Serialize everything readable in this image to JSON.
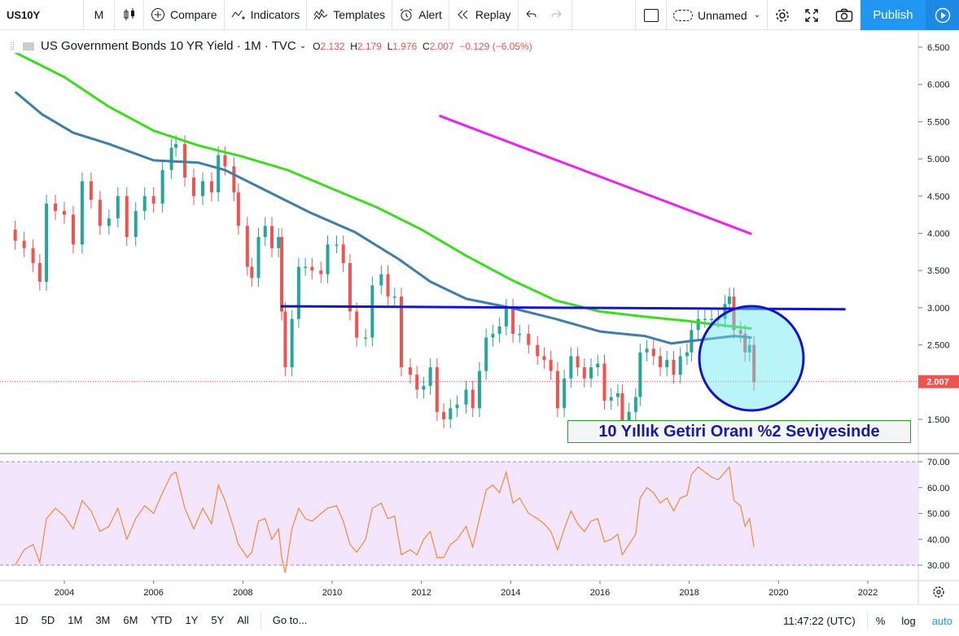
{
  "toolbar": {
    "symbol": "US10Y",
    "interval": "M",
    "compare": "Compare",
    "indicators": "Indicators",
    "templates": "Templates",
    "alert": "Alert",
    "replay": "Replay",
    "layout_name": "Unnamed",
    "publish": "Publish"
  },
  "legend": {
    "title": "US Government Bonds 10 YR Yield · 1M · TVC",
    "open_label": "O",
    "open": "2.132",
    "high_label": "H",
    "high": "2.179",
    "low_label": "L",
    "low": "1.976",
    "close_label": "C",
    "close": "2.007",
    "change": "−0.129 (−6.05%)"
  },
  "price_tag": "2.007",
  "annotation": "10 Yıllık Getiri Oranı %2 Seviyesinde",
  "bottombar": {
    "ranges": [
      "1D",
      "5D",
      "1M",
      "3M",
      "6M",
      "YTD",
      "1Y",
      "5Y",
      "All"
    ],
    "goto": "Go to...",
    "time": "11:47:22 (UTC)",
    "percent": "%",
    "log": "log",
    "auto": "auto"
  },
  "colors": {
    "up": "#26a69a",
    "down": "#ef5350",
    "ma_green": "#3ddc20",
    "ma_blue": "#3f7ea6",
    "magenta": "#ee22ee",
    "hline": "#1515c8",
    "rsi_line": "#f08a3c",
    "rsi_band": "#f3e5fb",
    "accent": "#2196f3"
  },
  "chart_data": [
    {
      "type": "candlestick",
      "title": "US Government Bonds 10 YR Yield",
      "interval": "1M",
      "x_ticks": [
        "2004",
        "2006",
        "2008",
        "2010",
        "2012",
        "2014",
        "2016",
        "2018",
        "2020",
        "2022"
      ],
      "y_ticks": [
        "1.500",
        "2.000",
        "2.500",
        "3.000",
        "3.500",
        "4.000",
        "4.500",
        "5.000",
        "5.500",
        "6.000",
        "6.500"
      ],
      "ylim": [
        1.1,
        6.6
      ],
      "xlim": [
        2002.9,
        2023.4
      ],
      "close_series": [
        [
          2002.9,
          3.9
        ],
        [
          2003.1,
          3.8
        ],
        [
          2003.3,
          3.6
        ],
        [
          2003.45,
          3.35
        ],
        [
          2003.6,
          4.4
        ],
        [
          2003.8,
          4.3
        ],
        [
          2004.0,
          4.25
        ],
        [
          2004.2,
          3.85
        ],
        [
          2004.4,
          4.7
        ],
        [
          2004.6,
          4.45
        ],
        [
          2004.8,
          4.1
        ],
        [
          2005.0,
          4.2
        ],
        [
          2005.2,
          4.5
        ],
        [
          2005.4,
          3.95
        ],
        [
          2005.6,
          4.3
        ],
        [
          2005.8,
          4.5
        ],
        [
          2006.0,
          4.4
        ],
        [
          2006.2,
          4.85
        ],
        [
          2006.4,
          5.15
        ],
        [
          2006.5,
          5.2
        ],
        [
          2006.7,
          4.75
        ],
        [
          2006.9,
          4.5
        ],
        [
          2007.1,
          4.7
        ],
        [
          2007.3,
          4.55
        ],
        [
          2007.45,
          5.05
        ],
        [
          2007.6,
          4.9
        ],
        [
          2007.8,
          4.55
        ],
        [
          2007.9,
          4.1
        ],
        [
          2008.1,
          3.55
        ],
        [
          2008.2,
          3.4
        ],
        [
          2008.35,
          3.95
        ],
        [
          2008.5,
          4.1
        ],
        [
          2008.65,
          3.8
        ],
        [
          2008.8,
          3.95
        ],
        [
          2008.87,
          2.95
        ],
        [
          2008.95,
          2.2
        ],
        [
          2009.1,
          2.85
        ],
        [
          2009.25,
          3.55
        ],
        [
          2009.4,
          3.55
        ],
        [
          2009.55,
          3.5
        ],
        [
          2009.75,
          3.45
        ],
        [
          2009.9,
          3.85
        ],
        [
          2010.1,
          3.85
        ],
        [
          2010.25,
          3.6
        ],
        [
          2010.4,
          2.95
        ],
        [
          2010.55,
          2.6
        ],
        [
          2010.75,
          2.6
        ],
        [
          2010.9,
          3.3
        ],
        [
          2011.1,
          3.45
        ],
        [
          2011.25,
          3.15
        ],
        [
          2011.4,
          3.15
        ],
        [
          2011.55,
          2.2
        ],
        [
          2011.75,
          2.1
        ],
        [
          2011.9,
          1.9
        ],
        [
          2012.05,
          1.95
        ],
        [
          2012.2,
          2.2
        ],
        [
          2012.35,
          1.6
        ],
        [
          2012.5,
          1.5
        ],
        [
          2012.65,
          1.65
        ],
        [
          2012.8,
          1.7
        ],
        [
          2013.0,
          1.9
        ],
        [
          2013.15,
          1.65
        ],
        [
          2013.3,
          2.15
        ],
        [
          2013.45,
          2.6
        ],
        [
          2013.6,
          2.65
        ],
        [
          2013.75,
          2.75
        ],
        [
          2013.9,
          3.0
        ],
        [
          2014.05,
          2.65
        ],
        [
          2014.2,
          2.65
        ],
        [
          2014.4,
          2.5
        ],
        [
          2014.6,
          2.35
        ],
        [
          2014.75,
          2.3
        ],
        [
          2014.9,
          2.15
        ],
        [
          2015.05,
          1.65
        ],
        [
          2015.2,
          2.05
        ],
        [
          2015.35,
          2.35
        ],
        [
          2015.5,
          2.2
        ],
        [
          2015.65,
          2.05
        ],
        [
          2015.8,
          2.2
        ],
        [
          2015.95,
          2.25
        ],
        [
          2016.1,
          1.75
        ],
        [
          2016.25,
          1.8
        ],
        [
          2016.4,
          1.85
        ],
        [
          2016.5,
          1.45
        ],
        [
          2016.65,
          1.6
        ],
        [
          2016.8,
          1.8
        ],
        [
          2016.9,
          2.4
        ],
        [
          2017.05,
          2.45
        ],
        [
          2017.2,
          2.35
        ],
        [
          2017.35,
          2.2
        ],
        [
          2017.5,
          2.3
        ],
        [
          2017.65,
          2.1
        ],
        [
          2017.8,
          2.35
        ],
        [
          2017.95,
          2.4
        ],
        [
          2018.05,
          2.7
        ],
        [
          2018.2,
          2.85
        ],
        [
          2018.35,
          2.85
        ],
        [
          2018.5,
          2.85
        ],
        [
          2018.65,
          2.85
        ],
        [
          2018.8,
          3.05
        ],
        [
          2018.9,
          3.15
        ],
        [
          2019.0,
          2.7
        ],
        [
          2019.15,
          2.65
        ],
        [
          2019.25,
          2.4
        ],
        [
          2019.35,
          2.5
        ],
        [
          2019.45,
          2.0
        ]
      ],
      "moving_averages": [
        {
          "color": "green",
          "points": [
            [
              2002.9,
              6.43
            ],
            [
              2004.0,
              6.1
            ],
            [
              2005.0,
              5.7
            ],
            [
              2006.0,
              5.38
            ],
            [
              2007.0,
              5.18
            ],
            [
              2008.0,
              5.03
            ],
            [
              2009.0,
              4.85
            ],
            [
              2010.0,
              4.6
            ],
            [
              2011.0,
              4.35
            ],
            [
              2012.0,
              4.05
            ],
            [
              2013.0,
              3.7
            ],
            [
              2014.0,
              3.38
            ],
            [
              2015.0,
              3.1
            ],
            [
              2016.0,
              2.95
            ],
            [
              2017.0,
              2.88
            ],
            [
              2018.0,
              2.82
            ],
            [
              2018.5,
              2.78
            ],
            [
              2019.4,
              2.72
            ]
          ]
        },
        {
          "color": "blue",
          "points": [
            [
              2002.9,
              5.9
            ],
            [
              2003.5,
              5.6
            ],
            [
              2004.2,
              5.35
            ],
            [
              2005.0,
              5.2
            ],
            [
              2006.0,
              4.98
            ],
            [
              2007.0,
              4.95
            ],
            [
              2007.6,
              4.85
            ],
            [
              2008.5,
              4.58
            ],
            [
              2009.5,
              4.28
            ],
            [
              2010.5,
              4.02
            ],
            [
              2011.5,
              3.65
            ],
            [
              2012.2,
              3.35
            ],
            [
              2013.0,
              3.12
            ],
            [
              2014.0,
              3.0
            ],
            [
              2015.0,
              2.85
            ],
            [
              2016.0,
              2.68
            ],
            [
              2017.0,
              2.62
            ],
            [
              2017.6,
              2.52
            ],
            [
              2018.0,
              2.55
            ],
            [
              2019.0,
              2.62
            ],
            [
              2019.4,
              2.6
            ]
          ]
        }
      ],
      "trendlines": [
        {
          "color": "magenta",
          "points": [
            [
              2012.4,
              5.58
            ],
            [
              2019.4,
              3.99
            ]
          ]
        },
        {
          "color": "blue-horizontal",
          "points": [
            [
              2008.85,
              3.02
            ],
            [
              2021.5,
              2.98
            ]
          ]
        }
      ],
      "last_price": 2.007,
      "annotation_text": "10 Yıllık Getiri Oranı %2 Seviyesinde"
    },
    {
      "type": "line",
      "y_ticks": [
        "30.00",
        "40.00",
        "50.00",
        "60.00",
        "70.00"
      ],
      "ylim": [
        23,
        72
      ],
      "band": [
        30,
        70
      ],
      "values": [
        [
          2002.9,
          30
        ],
        [
          2003.1,
          36
        ],
        [
          2003.3,
          38
        ],
        [
          2003.45,
          31
        ],
        [
          2003.6,
          48
        ],
        [
          2003.8,
          52
        ],
        [
          2004.0,
          49
        ],
        [
          2004.2,
          44
        ],
        [
          2004.4,
          55
        ],
        [
          2004.6,
          51
        ],
        [
          2004.8,
          43
        ],
        [
          2005.0,
          45
        ],
        [
          2005.2,
          52
        ],
        [
          2005.4,
          40
        ],
        [
          2005.6,
          48
        ],
        [
          2005.8,
          53
        ],
        [
          2006.0,
          50
        ],
        [
          2006.2,
          58
        ],
        [
          2006.4,
          65
        ],
        [
          2006.5,
          66
        ],
        [
          2006.7,
          52
        ],
        [
          2006.9,
          44
        ],
        [
          2007.1,
          52
        ],
        [
          2007.3,
          46
        ],
        [
          2007.45,
          61
        ],
        [
          2007.6,
          55
        ],
        [
          2007.8,
          44
        ],
        [
          2007.9,
          38
        ],
        [
          2008.1,
          33
        ],
        [
          2008.2,
          35
        ],
        [
          2008.35,
          47
        ],
        [
          2008.5,
          48
        ],
        [
          2008.65,
          40
        ],
        [
          2008.8,
          44
        ],
        [
          2008.87,
          33
        ],
        [
          2008.95,
          27
        ],
        [
          2009.1,
          44
        ],
        [
          2009.25,
          52
        ],
        [
          2009.4,
          48
        ],
        [
          2009.55,
          47
        ],
        [
          2009.75,
          50
        ],
        [
          2009.9,
          52
        ],
        [
          2010.1,
          53
        ],
        [
          2010.25,
          47
        ],
        [
          2010.4,
          38
        ],
        [
          2010.55,
          35
        ],
        [
          2010.75,
          40
        ],
        [
          2010.9,
          52
        ],
        [
          2011.1,
          54
        ],
        [
          2011.25,
          48
        ],
        [
          2011.4,
          49
        ],
        [
          2011.55,
          34
        ],
        [
          2011.75,
          36
        ],
        [
          2011.9,
          34
        ],
        [
          2012.05,
          40
        ],
        [
          2012.2,
          43
        ],
        [
          2012.35,
          33
        ],
        [
          2012.5,
          33
        ],
        [
          2012.65,
          38
        ],
        [
          2012.8,
          40
        ],
        [
          2013.0,
          45
        ],
        [
          2013.15,
          37
        ],
        [
          2013.3,
          48
        ],
        [
          2013.45,
          59
        ],
        [
          2013.6,
          61
        ],
        [
          2013.75,
          58
        ],
        [
          2013.9,
          66
        ],
        [
          2014.05,
          54
        ],
        [
          2014.2,
          56
        ],
        [
          2014.4,
          50
        ],
        [
          2014.6,
          48
        ],
        [
          2014.75,
          46
        ],
        [
          2014.9,
          43
        ],
        [
          2015.05,
          36
        ],
        [
          2015.2,
          44
        ],
        [
          2015.35,
          51
        ],
        [
          2015.5,
          46
        ],
        [
          2015.65,
          43
        ],
        [
          2015.8,
          47
        ],
        [
          2015.95,
          48
        ],
        [
          2016.1,
          39
        ],
        [
          2016.25,
          40
        ],
        [
          2016.4,
          42
        ],
        [
          2016.5,
          34
        ],
        [
          2016.65,
          38
        ],
        [
          2016.8,
          42
        ],
        [
          2016.9,
          56
        ],
        [
          2017.05,
          60
        ],
        [
          2017.2,
          58
        ],
        [
          2017.35,
          54
        ],
        [
          2017.5,
          56
        ],
        [
          2017.65,
          51
        ],
        [
          2017.8,
          56
        ],
        [
          2017.95,
          57
        ],
        [
          2018.05,
          65
        ],
        [
          2018.2,
          68
        ],
        [
          2018.35,
          66
        ],
        [
          2018.5,
          64
        ],
        [
          2018.65,
          63
        ],
        [
          2018.8,
          66
        ],
        [
          2018.9,
          68
        ],
        [
          2019.0,
          55
        ],
        [
          2019.15,
          53
        ],
        [
          2019.25,
          45
        ],
        [
          2019.35,
          48
        ],
        [
          2019.45,
          37
        ]
      ]
    }
  ]
}
